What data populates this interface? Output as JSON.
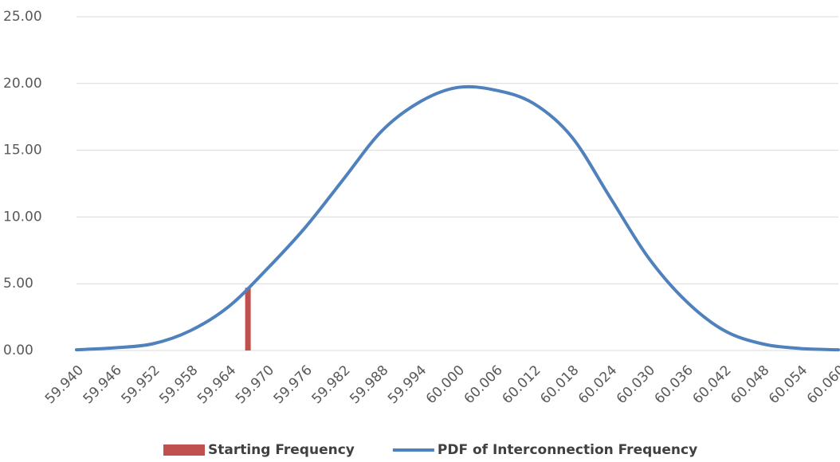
{
  "chart_data": {
    "type": "line",
    "xlim": [
      59.94,
      60.06
    ],
    "xticks": [
      {
        "value": 59.94,
        "label": "59.940"
      },
      {
        "value": 59.946,
        "label": "59.946"
      },
      {
        "value": 59.952,
        "label": "59.952"
      },
      {
        "value": 59.958,
        "label": "59.958"
      },
      {
        "value": 59.964,
        "label": "59.964"
      },
      {
        "value": 59.97,
        "label": "59.970"
      },
      {
        "value": 59.976,
        "label": "59.976"
      },
      {
        "value": 59.982,
        "label": "59.982"
      },
      {
        "value": 59.988,
        "label": "59.988"
      },
      {
        "value": 59.994,
        "label": "59.994"
      },
      {
        "value": 60.0,
        "label": "60.000"
      },
      {
        "value": 60.006,
        "label": "60.006"
      },
      {
        "value": 60.012,
        "label": "60.012"
      },
      {
        "value": 60.018,
        "label": "60.018"
      },
      {
        "value": 60.024,
        "label": "60.024"
      },
      {
        "value": 60.03,
        "label": "60.030"
      },
      {
        "value": 60.036,
        "label": "60.036"
      },
      {
        "value": 60.042,
        "label": "60.042"
      },
      {
        "value": 60.048,
        "label": "60.048"
      },
      {
        "value": 60.054,
        "label": "60.054"
      },
      {
        "value": 60.06,
        "label": "60.060"
      }
    ],
    "ylim": [
      0,
      25
    ],
    "yticks": [
      {
        "value": 0,
        "label": "0.00"
      },
      {
        "value": 5,
        "label": "5.00"
      },
      {
        "value": 10,
        "label": "10.00"
      },
      {
        "value": 15,
        "label": "15.00"
      },
      {
        "value": 20,
        "label": "20.00"
      },
      {
        "value": 25,
        "label": "25.00"
      }
    ],
    "grid": true,
    "legend": "bottom",
    "series": [
      {
        "name": "Starting Frequency",
        "color": "#c0504d",
        "mark": "bar",
        "x": [
          59.967
        ],
        "values": [
          4.7
        ]
      },
      {
        "name": "PDF of Interconnection Frequency",
        "color": "#4f81bd",
        "mark": "line",
        "x": [
          59.94,
          59.946,
          59.952,
          59.958,
          59.964,
          59.97,
          59.976,
          59.982,
          59.988,
          59.994,
          60.0,
          60.006,
          60.012,
          60.018,
          60.024,
          60.03,
          60.036,
          60.042,
          60.048,
          60.054,
          60.06
        ],
        "values": [
          0.05,
          0.2,
          0.5,
          1.5,
          3.3,
          6.1,
          9.2,
          12.8,
          16.4,
          18.6,
          19.7,
          19.5,
          18.5,
          16.0,
          11.5,
          7.0,
          3.7,
          1.5,
          0.5,
          0.15,
          0.05
        ]
      }
    ]
  }
}
